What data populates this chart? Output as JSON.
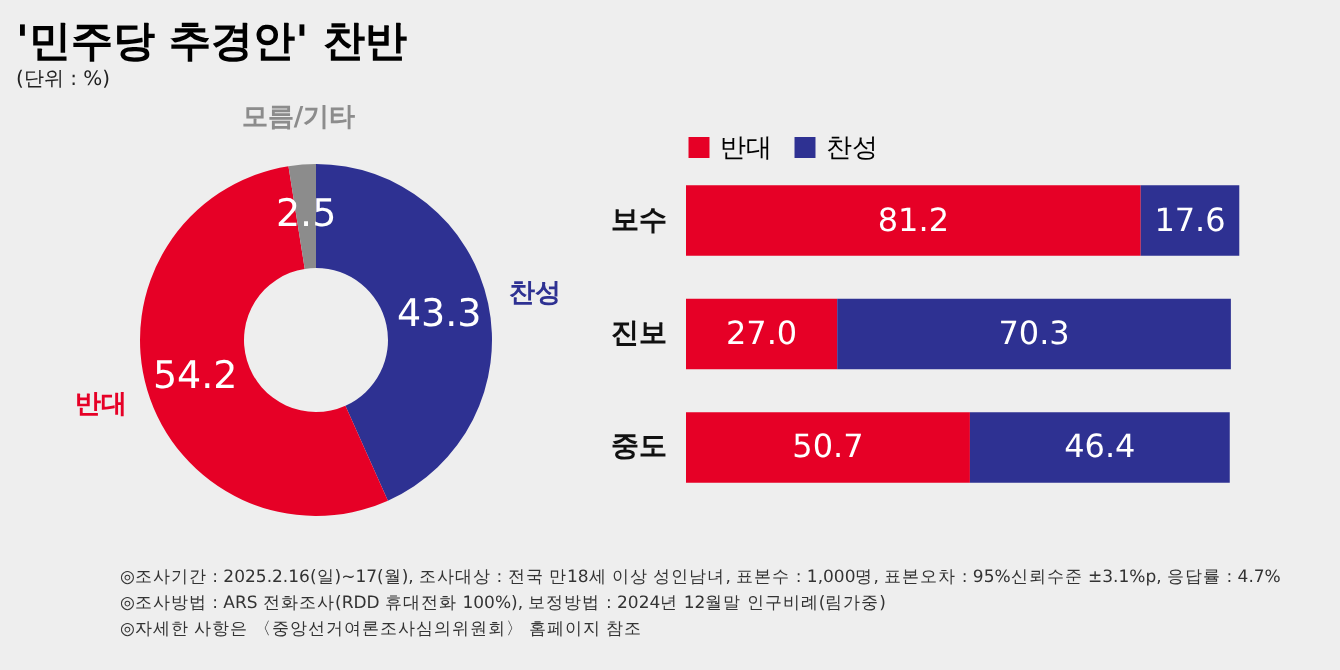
{
  "chart_data": [
    {
      "type": "donut",
      "title": "'민주당 추경안' 찬반",
      "subtitle": "(단위 : %)",
      "categories": [
        "찬성",
        "반대",
        "모름/기타"
      ],
      "values": [
        43.3,
        54.2,
        2.5
      ],
      "colors": [
        "#2e3192",
        "#e60026",
        "#8c8c8c"
      ],
      "data_labels": true,
      "legend": false,
      "annotations": [
        "◎조사기간 : 2025.2.16(일)~17(월), 조사대상 : 전국 만18세 이상 성인남녀, 표본수 : 1,000명, 표본오차 : 95%신뢰수준 ±3.1%p, 응답률 : 4.7%",
        "◎조사방법 : ARS 전화조사(RDD 휴대전화 100%), 보정방법 : 2024년 12월말 인구비례(림가중)",
        "◎자세한 사항은 〈중앙선거여론조사심의위원회〉 홈페이지 참조"
      ]
    },
    {
      "type": "bar",
      "orientation": "horizontal",
      "stacked": true,
      "legend": "top left",
      "categories": [
        "보수",
        "진보",
        "중도"
      ],
      "series": [
        {
          "name": "반대",
          "color": "#e60026",
          "values": [
            81.2,
            27.0,
            50.7
          ],
          "value_labels": [
            "81.2",
            "27.0",
            "50.7"
          ]
        },
        {
          "name": "찬성",
          "color": "#2e3192",
          "values": [
            17.6,
            70.3,
            46.4
          ],
          "value_labels": [
            "17.6",
            "70.3",
            "46.4"
          ]
        }
      ]
    }
  ]
}
